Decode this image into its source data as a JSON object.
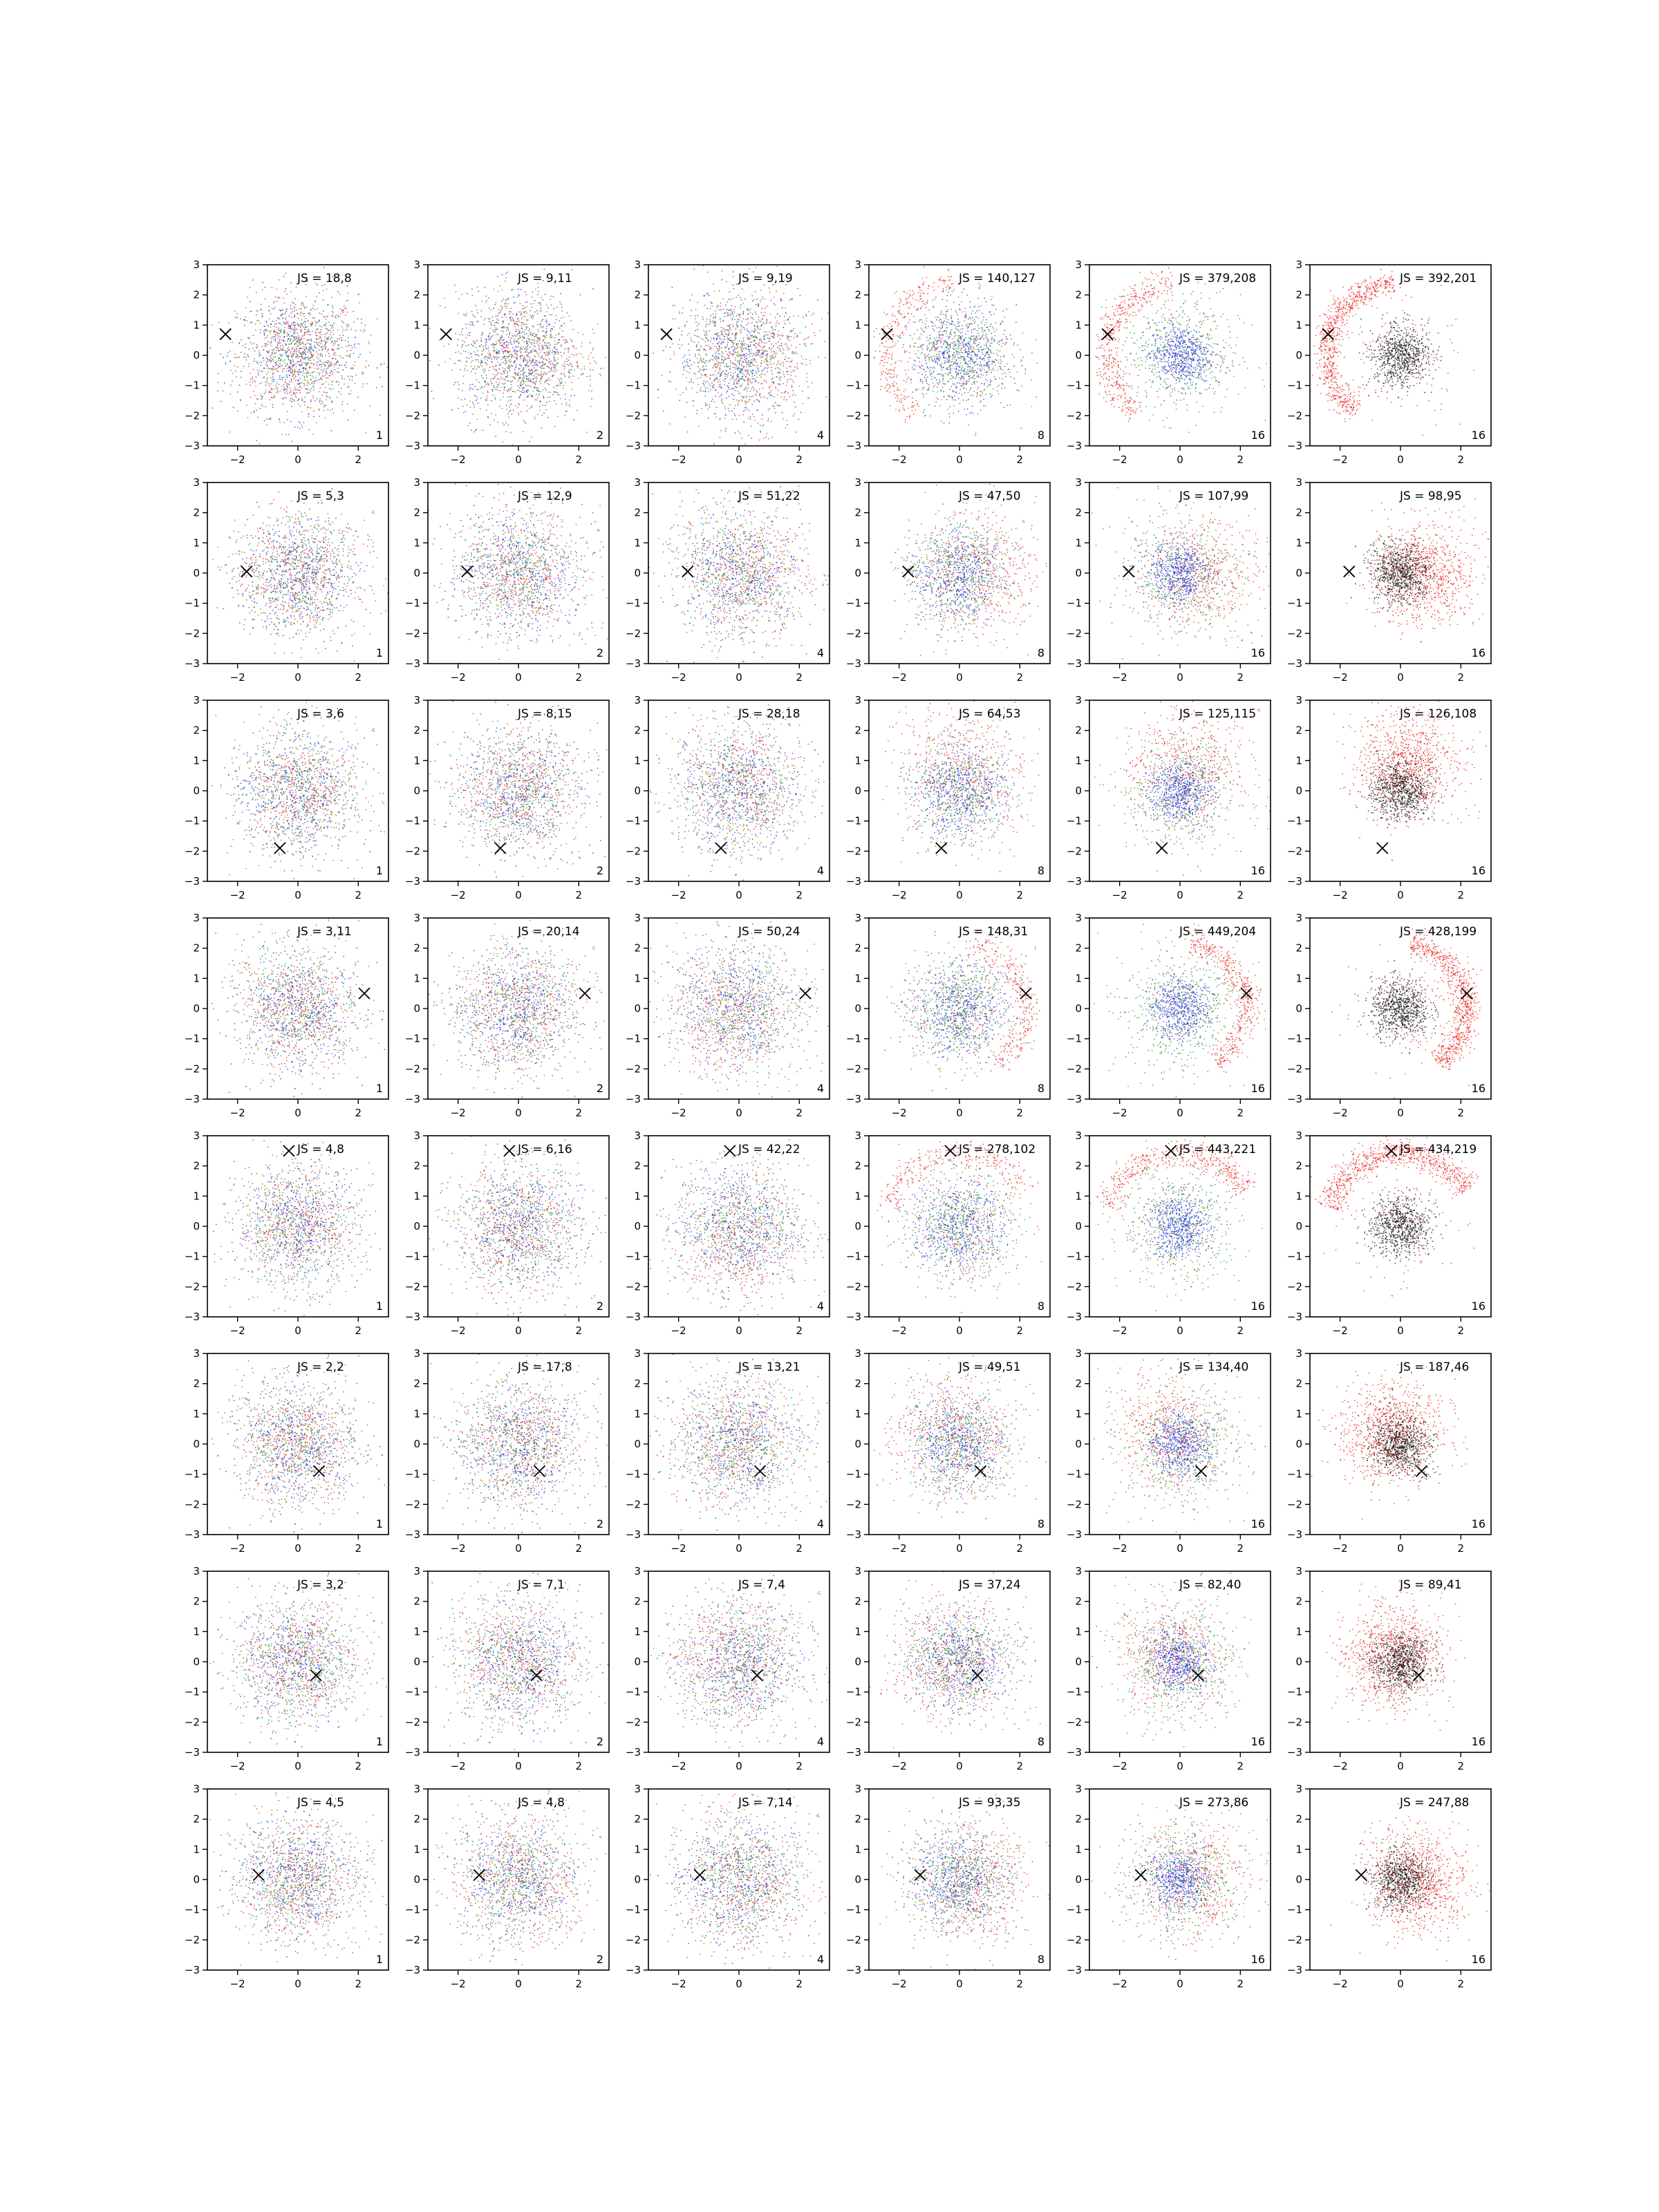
{
  "figure": {
    "background": "#ffffff",
    "colors": {
      "red": "#e8211a",
      "green": "#2a8a2a",
      "blue": "#2233dd",
      "black": "#111111"
    }
  },
  "chart_data": {
    "type": "scatter",
    "layout": "grid of 8 rows x 6 columns of scatter panels",
    "axes": {
      "xlim": [
        -3,
        3
      ],
      "ylim": [
        -3,
        3
      ],
      "xticks": [
        -2,
        0,
        2
      ],
      "yticks": [
        -3,
        -2,
        -1,
        0,
        1,
        2,
        3
      ],
      "grid": false
    },
    "annotation_position": "top-center",
    "count_label_position": "bottom-right",
    "marker": "x",
    "columns": [
      "1",
      "2",
      "4",
      "8",
      "16",
      "16"
    ],
    "column_mode": [
      "mixed",
      "mixed",
      "mixed",
      "mixed",
      "mixed",
      "redblack"
    ],
    "rows": [
      {
        "marker": [
          -2.4,
          0.7
        ],
        "js": [
          "JS = 18,8",
          "JS = 9,11",
          "JS = 9,19",
          "JS = 140,127",
          "JS = 379,208",
          "JS = 392,201"
        ]
      },
      {
        "marker": [
          -1.7,
          0.05
        ],
        "js": [
          "JS = 5,3",
          "JS = 12,9",
          "JS = 51,22",
          "JS = 47,50",
          "JS = 107,99",
          "JS = 98,95"
        ]
      },
      {
        "marker": [
          -0.6,
          -1.9
        ],
        "js": [
          "JS = 3,6",
          "JS = 8,15",
          "JS = 28,18",
          "JS = 64,53",
          "JS = 125,115",
          "JS = 126,108"
        ]
      },
      {
        "marker": [
          2.2,
          0.5
        ],
        "js": [
          "JS = 3,11",
          "JS = 20,14",
          "JS = 50,24",
          "JS = 148,31",
          "JS = 449,204",
          "JS = 428,199"
        ]
      },
      {
        "marker": [
          -0.3,
          2.5
        ],
        "js": [
          "JS = 4,8",
          "JS = 6,16",
          "JS = 42,22",
          "JS = 278,102",
          "JS = 443,221",
          "JS = 434,219"
        ]
      },
      {
        "marker": [
          0.7,
          -0.9
        ],
        "js": [
          "JS = 2,2",
          "JS = 17,8",
          "JS = 13,21",
          "JS = 49,51",
          "JS = 134,40",
          "JS = 187,46"
        ]
      },
      {
        "marker": [
          0.6,
          -0.45
        ],
        "js": [
          "JS = 3,2",
          "JS = 7,1",
          "JS = 7,4",
          "JS = 37,24",
          "JS = 82,40",
          "JS = 89,41"
        ]
      },
      {
        "marker": [
          -1.3,
          0.15
        ],
        "js": [
          "JS = 4,5",
          "JS = 4,8",
          "JS = 7,14",
          "JS = 93,35",
          "JS = 273,86",
          "JS = 247,88"
        ]
      }
    ]
  }
}
